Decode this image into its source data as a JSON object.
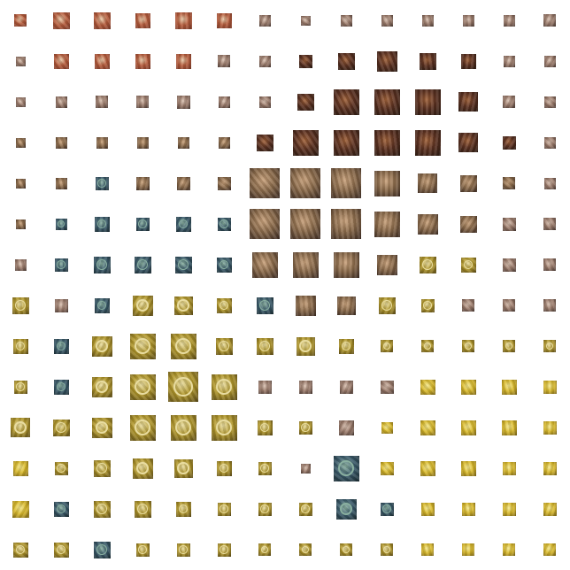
{
  "grid": {
    "columns": 14,
    "rows": 14,
    "palettes": {
      "d": [
        "#b45a3a",
        "#e8c9a8",
        "#7a3b2a"
      ],
      "f": [
        "#8a6a4a",
        "#c9a27c",
        "#3a2a22"
      ],
      "h": [
        "#5a3020",
        "#a0623a",
        "#2a1a12"
      ],
      "g": [
        "#3a5a6a",
        "#8ab0a0",
        "#1a2a30"
      ],
      "t": [
        "#b0962a",
        "#e8dca0",
        "#5a4a18"
      ],
      "y": [
        "#d8b82a",
        "#f4e890",
        "#7a6418"
      ],
      "m": [
        "#9a7a6a",
        "#d8c0b0",
        "#4a3a34"
      ]
    },
    "cells": [
      [
        "d",
        0.35,
        "d",
        0.47,
        "d",
        0.47,
        "d",
        0.42,
        "d",
        0.47,
        "d",
        0.42,
        "m",
        0.32,
        "m",
        0.28,
        "m",
        0.32,
        "m",
        0.32,
        "m",
        0.32,
        "m",
        0.32,
        "m",
        0.32,
        "m",
        0.35
      ],
      [
        "m",
        0.28,
        "d",
        0.42,
        "d",
        0.42,
        "d",
        0.42,
        "d",
        0.42,
        "m",
        0.35,
        "m",
        0.32,
        "h",
        0.38,
        "h",
        0.47,
        "h",
        0.58,
        "h",
        0.47,
        "h",
        0.42,
        "m",
        0.32,
        "m",
        0.32
      ],
      [
        "m",
        0.28,
        "m",
        0.32,
        "m",
        0.35,
        "m",
        0.35,
        "m",
        0.38,
        "m",
        0.32,
        "m",
        0.32,
        "h",
        0.47,
        "h",
        0.72,
        "h",
        0.72,
        "h",
        0.72,
        "h",
        0.55,
        "m",
        0.35,
        "m",
        0.32
      ],
      [
        "f",
        0.28,
        "f",
        0.32,
        "f",
        0.32,
        "f",
        0.32,
        "f",
        0.32,
        "f",
        0.32,
        "h",
        0.47,
        "h",
        0.72,
        "h",
        0.72,
        "h",
        0.72,
        "h",
        0.72,
        "h",
        0.55,
        "h",
        0.38,
        "m",
        0.32
      ],
      [
        "f",
        0.28,
        "f",
        0.32,
        "g",
        0.38,
        "f",
        0.38,
        "f",
        0.38,
        "f",
        0.38,
        "f",
        0.85,
        "f",
        0.85,
        "f",
        0.85,
        "f",
        0.72,
        "f",
        0.55,
        "f",
        0.47,
        "f",
        0.35,
        "m",
        0.32
      ],
      [
        "f",
        0.28,
        "g",
        0.32,
        "g",
        0.42,
        "g",
        0.38,
        "g",
        0.42,
        "g",
        0.38,
        "f",
        0.85,
        "f",
        0.85,
        "f",
        0.85,
        "f",
        0.72,
        "f",
        0.58,
        "f",
        0.47,
        "m",
        0.38,
        "m",
        0.35
      ],
      [
        "m",
        0.32,
        "g",
        0.38,
        "g",
        0.47,
        "g",
        0.47,
        "g",
        0.47,
        "g",
        0.42,
        "f",
        0.72,
        "f",
        0.72,
        "f",
        0.72,
        "f",
        0.58,
        "t",
        0.47,
        "t",
        0.42,
        "m",
        0.38,
        "m",
        0.35
      ],
      [
        "t",
        0.47,
        "m",
        0.38,
        "g",
        0.42,
        "t",
        0.58,
        "t",
        0.52,
        "t",
        0.42,
        "g",
        0.47,
        "f",
        0.58,
        "f",
        0.52,
        "t",
        0.47,
        "t",
        0.38,
        "m",
        0.35,
        "m",
        0.35,
        "m",
        0.35
      ],
      [
        "t",
        0.42,
        "g",
        0.42,
        "t",
        0.58,
        "t",
        0.72,
        "t",
        0.72,
        "t",
        0.47,
        "t",
        0.47,
        "t",
        0.52,
        "t",
        0.42,
        "t",
        0.35,
        "t",
        0.35,
        "t",
        0.35,
        "t",
        0.35,
        "t",
        0.35
      ],
      [
        "t",
        0.38,
        "g",
        0.42,
        "t",
        0.58,
        "t",
        0.72,
        "t",
        0.85,
        "t",
        0.72,
        "m",
        0.38,
        "m",
        0.38,
        "m",
        0.38,
        "m",
        0.38,
        "y",
        0.42,
        "y",
        0.42,
        "y",
        0.42,
        "y",
        0.38
      ],
      [
        "t",
        0.55,
        "t",
        0.47,
        "t",
        0.58,
        "t",
        0.72,
        "t",
        0.72,
        "t",
        0.72,
        "t",
        0.42,
        "t",
        0.38,
        "m",
        0.42,
        "y",
        0.32,
        "y",
        0.42,
        "y",
        0.42,
        "y",
        0.42,
        "y",
        0.38
      ],
      [
        "y",
        0.42,
        "t",
        0.38,
        "t",
        0.47,
        "t",
        0.58,
        "t",
        0.52,
        "t",
        0.42,
        "t",
        0.38,
        "m",
        0.28,
        "g",
        0.72,
        "y",
        0.38,
        "y",
        0.42,
        "y",
        0.42,
        "y",
        0.38,
        "y",
        0.38
      ],
      [
        "y",
        0.47,
        "g",
        0.42,
        "t",
        0.47,
        "t",
        0.47,
        "t",
        0.42,
        "t",
        0.38,
        "t",
        0.38,
        "t",
        0.38,
        "g",
        0.58,
        "g",
        0.38,
        "y",
        0.38,
        "y",
        0.38,
        "y",
        0.38,
        "y",
        0.38
      ],
      [
        "t",
        0.42,
        "t",
        0.42,
        "g",
        0.47,
        "t",
        0.38,
        "t",
        0.38,
        "t",
        0.38,
        "t",
        0.35,
        "t",
        0.35,
        "t",
        0.35,
        "t",
        0.35,
        "y",
        0.35,
        "y",
        0.35,
        "y",
        0.35,
        "y",
        0.35
      ]
    ]
  }
}
